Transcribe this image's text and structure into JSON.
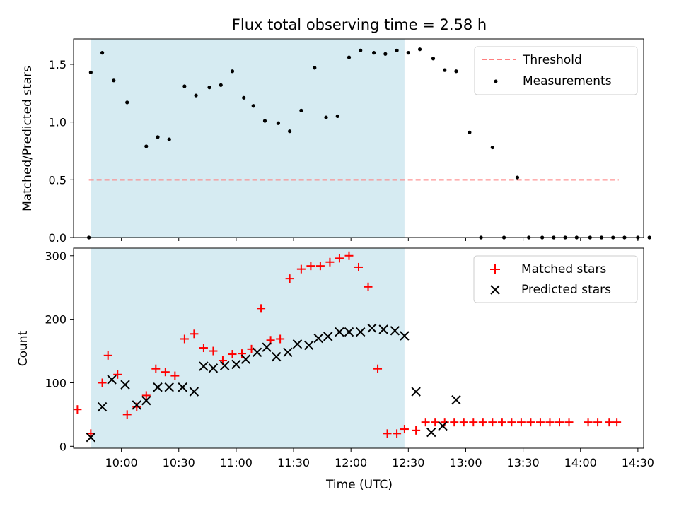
{
  "chart_data": [
    {
      "type": "scatter",
      "title": "Flux total observing time = 2.58 h",
      "xlabel": "",
      "ylabel": "Matched/Predicted stars",
      "ylim": [
        0,
        1.72
      ],
      "yticks": [
        "0.0",
        "0.5",
        "1.0",
        "1.5"
      ],
      "xlim": [
        "09:35",
        "14:33"
      ],
      "shaded_interval": [
        "09:44",
        "12:28"
      ],
      "grid": false,
      "legend_position": "top-right",
      "threshold": {
        "name": "Threshold",
        "value": 0.5,
        "x": [
          "09:43",
          "14:20"
        ],
        "color": "#ff7f7f",
        "style": "dashed"
      },
      "series": [
        {
          "name": "Measurements",
          "marker": "dot",
          "color": "#000000",
          "x": [
            "09:43",
            "09:44",
            "09:50",
            "09:56",
            "10:03",
            "10:13",
            "10:19",
            "10:25",
            "10:33",
            "10:39",
            "10:46",
            "10:52",
            "10:58",
            "11:04",
            "11:09",
            "11:15",
            "11:22",
            "11:28",
            "11:34",
            "11:41",
            "11:47",
            "11:53",
            "11:59",
            "12:05",
            "12:12",
            "12:18",
            "12:24",
            "12:30",
            "12:36",
            "12:43",
            "12:49",
            "12:55",
            "13:02",
            "13:08",
            "13:14",
            "13:20",
            "13:27",
            "13:33",
            "13:40",
            "13:46",
            "13:52",
            "13:58",
            "14:05",
            "14:11",
            "14:17",
            "14:23",
            "14:30",
            "14:36"
          ],
          "y": [
            0.0,
            1.43,
            1.6,
            1.36,
            1.17,
            0.79,
            0.87,
            0.85,
            1.31,
            1.23,
            1.3,
            1.32,
            1.44,
            1.21,
            1.14,
            1.01,
            0.99,
            0.92,
            1.1,
            1.47,
            1.04,
            1.05,
            1.56,
            1.62,
            1.6,
            1.59,
            1.62,
            1.6,
            1.63,
            1.55,
            1.45,
            1.44,
            0.91,
            0.0,
            0.78,
            0.0,
            0.52,
            0.0,
            0.0,
            0.0,
            0.0,
            0.0,
            0.0,
            0.0,
            0.0,
            0.0,
            0.0,
            0.0
          ]
        }
      ]
    },
    {
      "type": "scatter",
      "title": "",
      "xlabel": "Time (UTC)",
      "ylabel": "Count",
      "ylim": [
        -3,
        312
      ],
      "yticks": [
        0,
        100,
        200,
        300
      ],
      "xticks": [
        "10:00",
        "10:30",
        "11:00",
        "11:30",
        "12:00",
        "12:30",
        "13:00",
        "13:30",
        "14:00",
        "14:30"
      ],
      "shaded_interval": [
        "09:44",
        "12:28"
      ],
      "grid": false,
      "legend_position": "top-right",
      "series": [
        {
          "name": "Matched stars",
          "marker": "plus",
          "color": "#ff0000",
          "x": [
            "09:37",
            "09:44",
            "09:50",
            "09:53",
            "09:58",
            "10:03",
            "10:08",
            "10:13",
            "10:18",
            "10:23",
            "10:28",
            "10:33",
            "10:38",
            "10:43",
            "10:48",
            "10:53",
            "10:58",
            "11:03",
            "11:08",
            "11:13",
            "11:18",
            "11:23",
            "11:28",
            "11:34",
            "11:39",
            "11:44",
            "11:49",
            "11:54",
            "11:59",
            "12:04",
            "12:09",
            "12:14",
            "12:19",
            "12:24",
            "12:28",
            "12:34",
            "12:39",
            "12:44",
            "12:49",
            "12:54",
            "12:59",
            "13:04",
            "13:09",
            "13:14",
            "13:19",
            "13:24",
            "13:29",
            "13:34",
            "13:39",
            "13:44",
            "13:49",
            "13:54",
            "14:04",
            "14:09",
            "14:15",
            "14:19"
          ],
          "y": [
            58,
            20,
            100,
            143,
            113,
            50,
            62,
            80,
            122,
            117,
            111,
            169,
            177,
            155,
            150,
            135,
            145,
            146,
            153,
            217,
            167,
            169,
            264,
            279,
            284,
            284,
            290,
            296,
            300,
            282,
            251,
            122,
            20,
            20,
            27,
            25,
            38,
            38,
            38,
            38,
            38,
            38,
            38,
            38,
            38,
            38,
            38,
            38,
            38,
            38,
            38,
            38,
            38,
            38,
            38,
            38
          ]
        },
        {
          "name": "Predicted stars",
          "marker": "x",
          "color": "#000000",
          "x": [
            "09:44",
            "09:50",
            "09:55",
            "10:02",
            "10:08",
            "10:13",
            "10:19",
            "10:25",
            "10:32",
            "10:38",
            "10:43",
            "10:48",
            "10:54",
            "11:00",
            "11:05",
            "11:11",
            "11:16",
            "11:21",
            "11:27",
            "11:32",
            "11:38",
            "11:43",
            "11:48",
            "11:54",
            "11:59",
            "12:05",
            "12:11",
            "12:17",
            "12:23",
            "12:28",
            "12:34",
            "12:42",
            "12:48"
          ],
          "y": [
            14,
            62,
            105,
            97,
            65,
            72,
            93,
            93,
            93,
            86,
            126,
            123,
            127,
            129,
            137,
            148,
            156,
            141,
            148,
            161,
            159,
            170,
            173,
            180,
            180,
            180,
            186,
            184,
            182,
            174,
            86,
            22,
            32
          ]
        }
      ],
      "extra_points": [
        {
          "series": "Predicted stars",
          "x": "12:55",
          "y": 73
        }
      ]
    }
  ]
}
